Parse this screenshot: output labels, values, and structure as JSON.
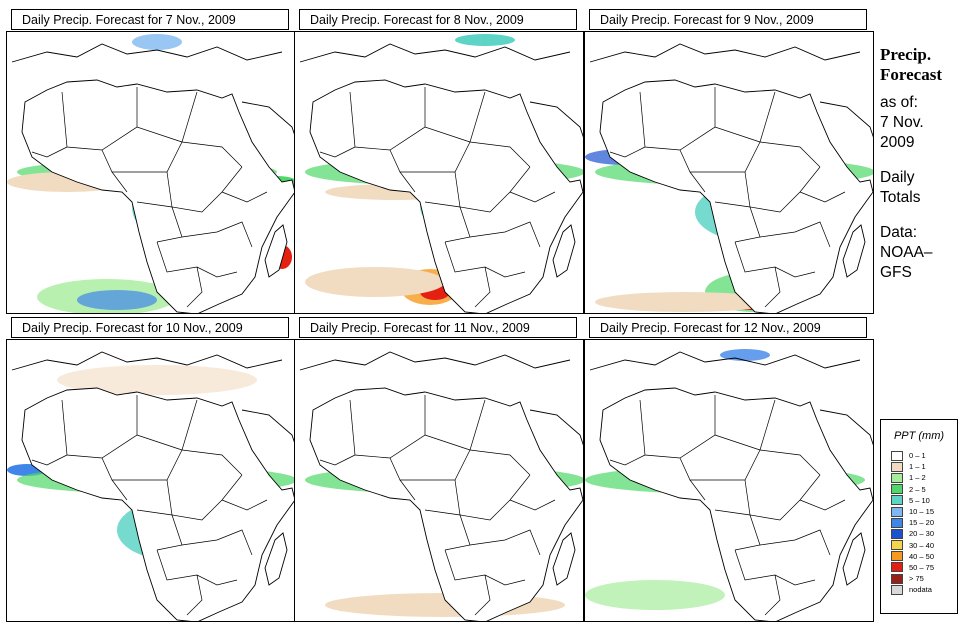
{
  "panels": [
    {
      "title": "Daily Precip. Forecast for  7 Nov., 2009",
      "date": "7 Nov., 2009"
    },
    {
      "title": "Daily Precip. Forecast for  8 Nov., 2009",
      "date": "8 Nov., 2009"
    },
    {
      "title": "Daily Precip. Forecast for  9 Nov., 2009",
      "date": "9 Nov., 2009"
    },
    {
      "title": "Daily Precip. Forecast for  10 Nov., 2009",
      "date": "10 Nov., 2009"
    },
    {
      "title": "Daily Precip. Forecast for  11 Nov., 2009",
      "date": "11 Nov., 2009"
    },
    {
      "title": "Daily Precip. Forecast for  12 Nov., 2009",
      "date": "12 Nov., 2009"
    }
  ],
  "sidebar": {
    "heading_line1": "Precip.",
    "heading_line2": "Forecast",
    "asof_line1": "as of:",
    "asof_line2": "7 Nov.",
    "asof_line3": "2009",
    "daily_line1": "Daily",
    "daily_line2": "Totals",
    "data_line1": "Data:",
    "data_line2": "NOAA–",
    "data_line3": "GFS"
  },
  "legend": {
    "title": "PPT (mm)",
    "items": [
      {
        "label": "0 – 1",
        "color": "#ffffff"
      },
      {
        "label": "1 – 1",
        "color": "#f1dcc1"
      },
      {
        "label": "1 – 2",
        "color": "#a5ec9b"
      },
      {
        "label": "2 – 5",
        "color": "#4fd86a"
      },
      {
        "label": "5 – 10",
        "color": "#5ed4c6"
      },
      {
        "label": "10 – 15",
        "color": "#7fb8f0"
      },
      {
        "label": "15 – 20",
        "color": "#3f86e8"
      },
      {
        "label": "20 – 30",
        "color": "#1c52d0"
      },
      {
        "label": "30 – 40",
        "color": "#f5d64a"
      },
      {
        "label": "40 – 50",
        "color": "#f59a1e"
      },
      {
        "label": "50 – 75",
        "color": "#e32012"
      },
      {
        "label": "> 75",
        "color": "#9a1f16"
      },
      {
        "label": "nodata",
        "color": "#d9d9d9"
      }
    ]
  }
}
